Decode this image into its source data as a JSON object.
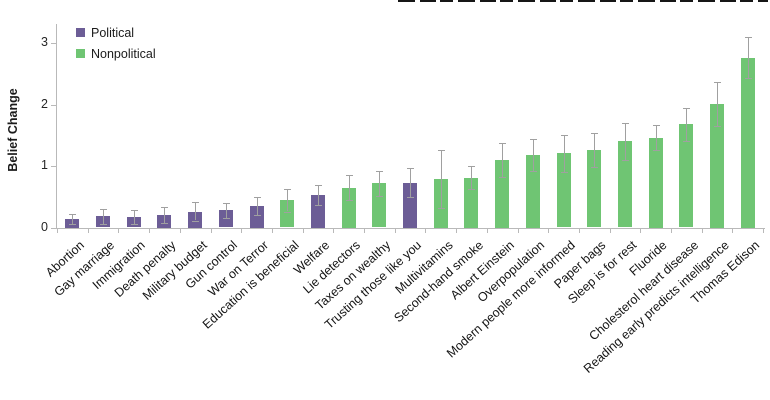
{
  "chart_data": {
    "type": "bar",
    "title": "",
    "xlabel": "",
    "ylabel": "Belief Change",
    "ylim": [
      0,
      3.3
    ],
    "yticks": [
      0,
      1,
      2,
      3
    ],
    "grid": false,
    "legend_position": "top-left",
    "legend": [
      {
        "label": "Political",
        "color": "#6c5d96"
      },
      {
        "label": "Nonpolitical",
        "color": "#6fc573"
      }
    ],
    "error_bar_color": "#a0a0a0",
    "axis_color": "#b9b9b9",
    "bars": [
      {
        "category": "Abortion",
        "value": 0.14,
        "error": 0.08,
        "series": "Political"
      },
      {
        "category": "Gay marriage",
        "value": 0.18,
        "error": 0.12,
        "series": "Political"
      },
      {
        "category": "Immigration",
        "value": 0.17,
        "error": 0.11,
        "series": "Political"
      },
      {
        "category": "Death penalty",
        "value": 0.21,
        "error": 0.13,
        "series": "Political"
      },
      {
        "category": "Military budget",
        "value": 0.26,
        "error": 0.15,
        "series": "Political"
      },
      {
        "category": "Gun control",
        "value": 0.28,
        "error": 0.12,
        "series": "Political"
      },
      {
        "category": "War on Terror",
        "value": 0.35,
        "error": 0.15,
        "series": "Political"
      },
      {
        "category": "Education is beneficial",
        "value": 0.44,
        "error": 0.18,
        "series": "Nonpolitical"
      },
      {
        "category": "Welfare",
        "value": 0.53,
        "error": 0.16,
        "series": "Political"
      },
      {
        "category": "Lie detectors",
        "value": 0.65,
        "error": 0.21,
        "series": "Nonpolitical"
      },
      {
        "category": "Taxes on wealthy",
        "value": 0.72,
        "error": 0.2,
        "series": "Nonpolitical"
      },
      {
        "category": "Trusting those like you",
        "value": 0.73,
        "error": 0.24,
        "series": "Political"
      },
      {
        "category": "Multivitamins",
        "value": 0.79,
        "error": 0.47,
        "series": "Nonpolitical"
      },
      {
        "category": "Second-hand smoke",
        "value": 0.81,
        "error": 0.19,
        "series": "Nonpolitical"
      },
      {
        "category": "Albert Einstein",
        "value": 1.1,
        "error": 0.28,
        "series": "Nonpolitical"
      },
      {
        "category": "Overpopulation",
        "value": 1.18,
        "error": 0.26,
        "series": "Nonpolitical"
      },
      {
        "category": "Modern people more informed",
        "value": 1.21,
        "error": 0.3,
        "series": "Nonpolitical"
      },
      {
        "category": "Paper bags",
        "value": 1.26,
        "error": 0.28,
        "series": "Nonpolitical"
      },
      {
        "category": "Sleep is for rest",
        "value": 1.4,
        "error": 0.3,
        "series": "Nonpolitical"
      },
      {
        "category": "Fluoride",
        "value": 1.46,
        "error": 0.2,
        "series": "Nonpolitical"
      },
      {
        "category": "Cholesterol heart disease",
        "value": 1.68,
        "error": 0.27,
        "series": "Nonpolitical"
      },
      {
        "category": "Reading early predicts intelligence",
        "value": 2.01,
        "error": 0.36,
        "series": "Nonpolitical"
      },
      {
        "category": "Thomas Edison",
        "value": 2.76,
        "error": 0.33,
        "series": "Nonpolitical"
      }
    ]
  }
}
